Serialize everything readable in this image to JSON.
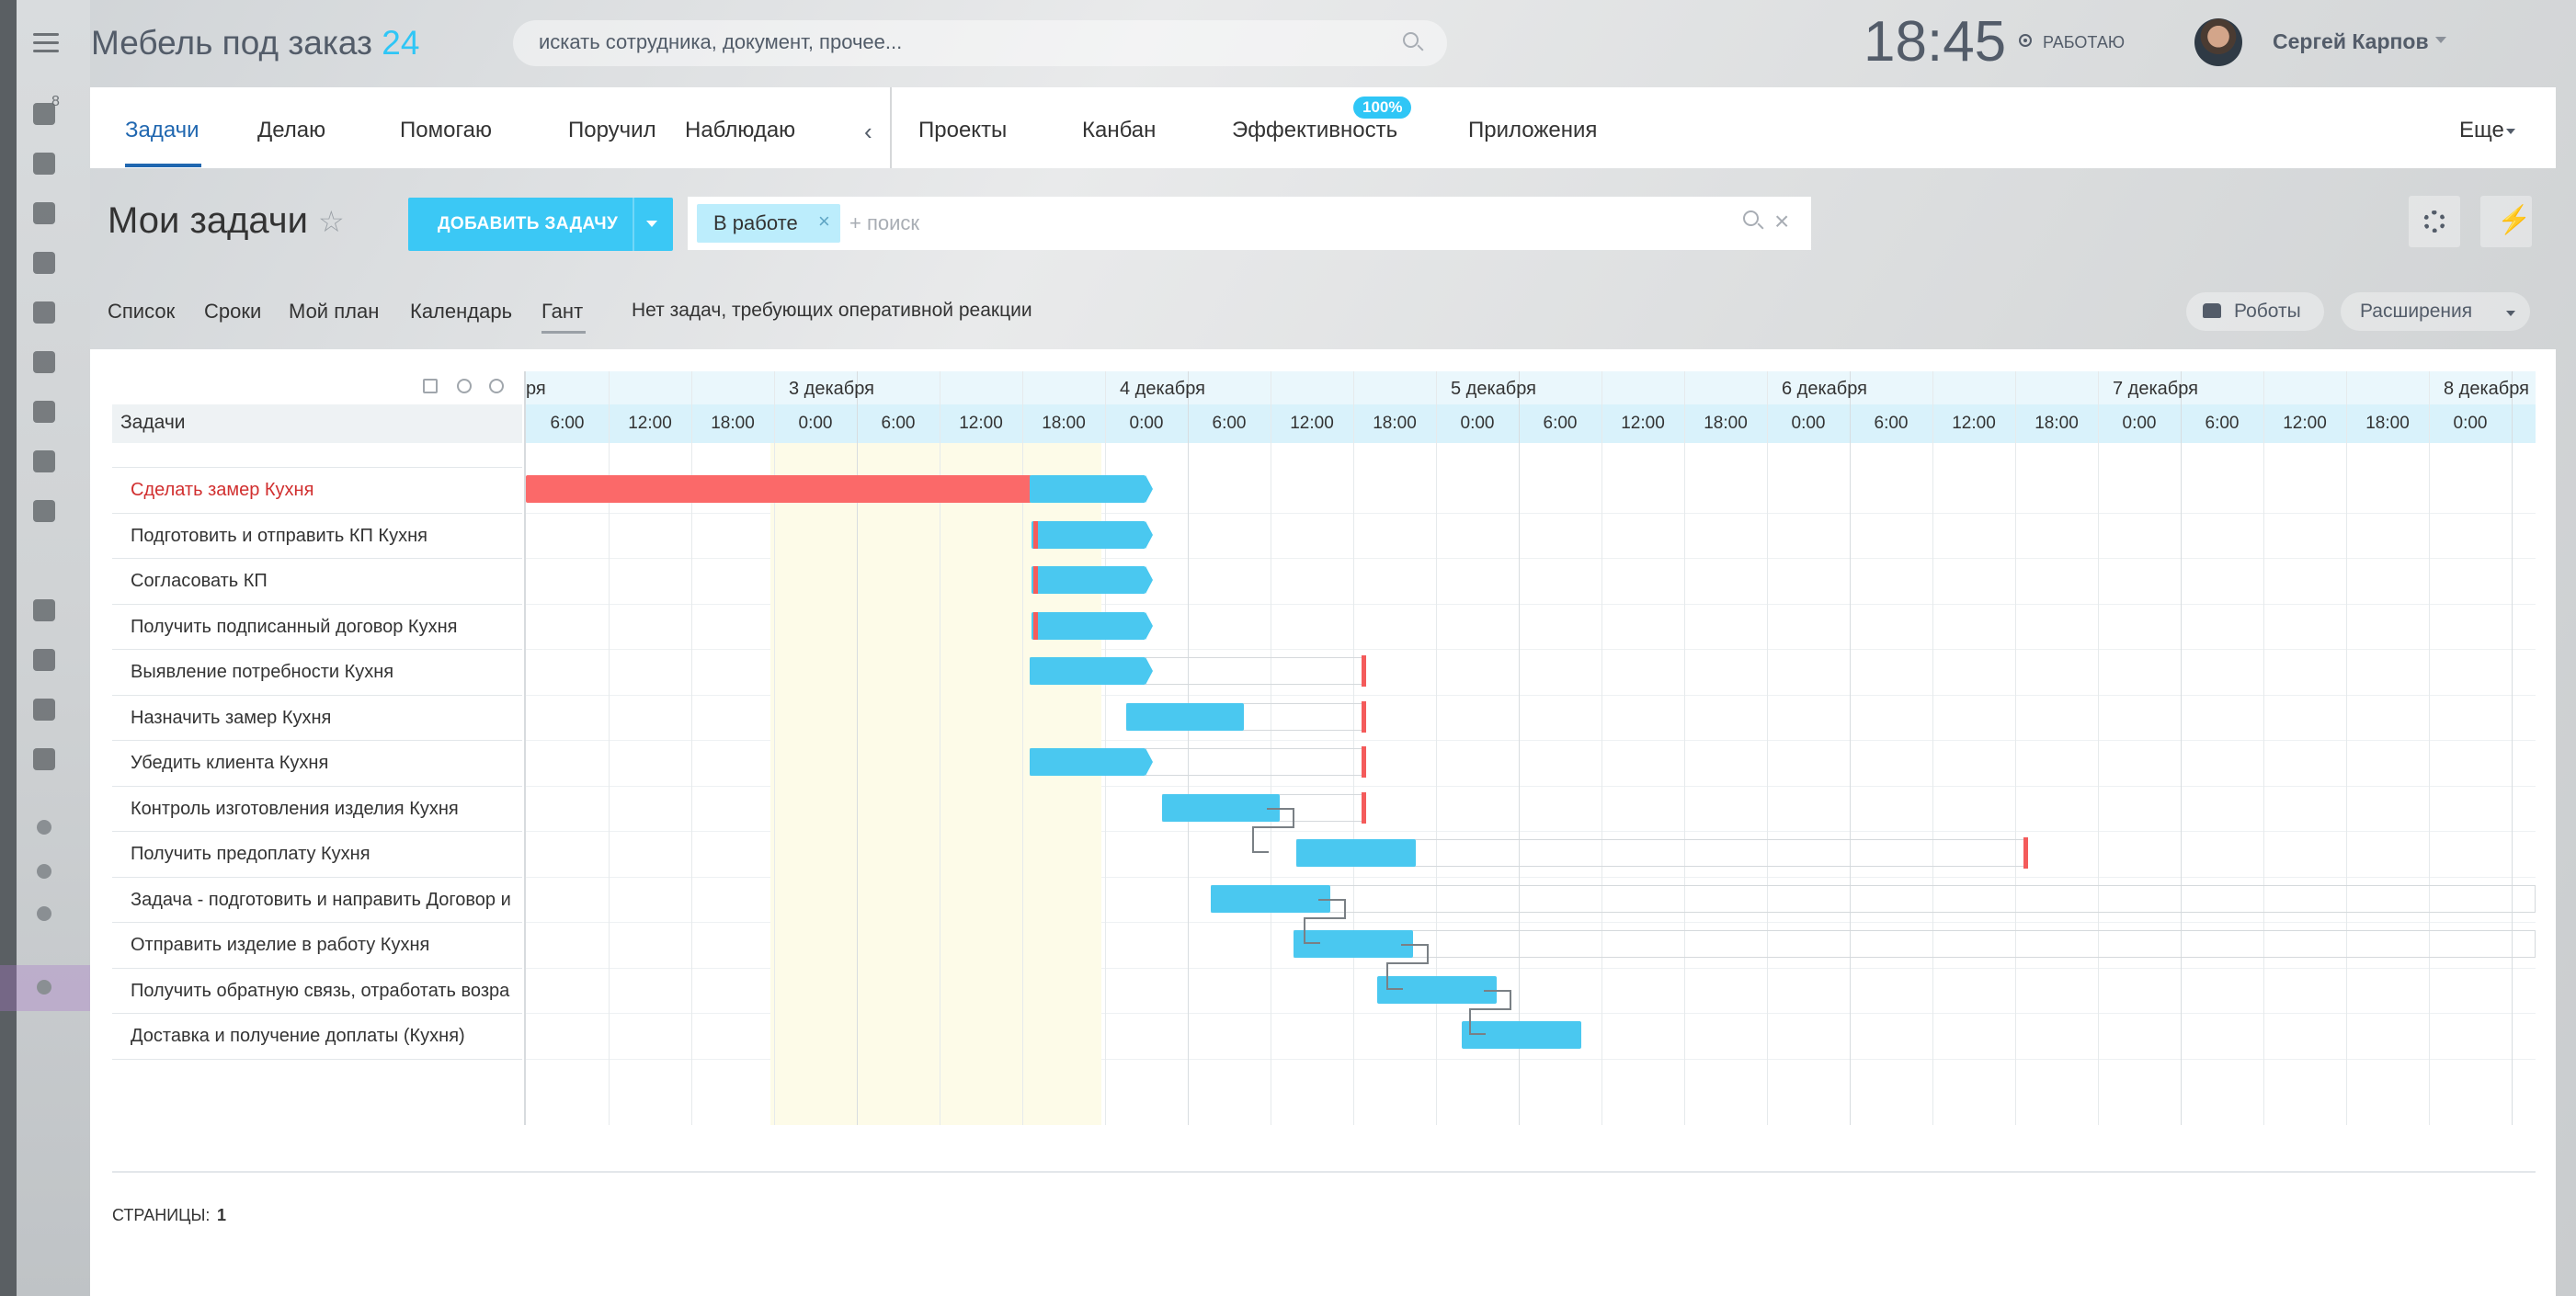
{
  "header": {
    "logo_text": "Мебель под заказ",
    "logo_num": "24",
    "search_placeholder": "искать сотрудника, документ, прочее...",
    "time": "18:45",
    "work_status": "РАБОТАЮ",
    "user_name": "Сергей Карпов",
    "side_badge": "8"
  },
  "tabs": {
    "items": [
      "Задачи",
      "Делаю",
      "Помогаю",
      "Поручил",
      "Наблюдаю",
      "Проекты",
      "Канбан",
      "Эффективность",
      "Приложения"
    ],
    "efficiency_badge": "100%",
    "more": "Еще",
    "arrow": "‹"
  },
  "page": {
    "title": "Мои задачи",
    "add_button": "ДОБАВИТЬ ЗАДАЧУ",
    "filter_chip": "В работе",
    "filter_search": "+ поиск"
  },
  "views": {
    "items": [
      "Список",
      "Сроки",
      "Мой план",
      "Календарь",
      "Гант"
    ],
    "note": "Нет задач, требующих оперативной реакции",
    "robots": "Роботы",
    "extensions": "Расширения"
  },
  "gantt": {
    "tasks_header": "Задачи",
    "days": [
      "ря",
      "3 декабря",
      "4 декабря",
      "5 декабря",
      "6 декабря",
      "7 декабря",
      "8 декабря"
    ],
    "hours": [
      "6:00",
      "12:00",
      "18:00",
      "0:00",
      "6:00",
      "12:00",
      "18:00",
      "0:00",
      "6:00",
      "12:00",
      "18:00",
      "0:00",
      "6:00",
      "12:00",
      "18:00",
      "0:00",
      "6:00",
      "12:00",
      "18:00",
      "0:00",
      "6:00",
      "12:00",
      "18:00",
      "0:00"
    ],
    "tasks": [
      {
        "name": "Сделать замер Кухня",
        "overdue": true
      },
      {
        "name": "Подготовить и отправить КП Кухня",
        "overdue": false
      },
      {
        "name": "Согласовать КП",
        "overdue": false
      },
      {
        "name": "Получить подписанный договор Кухня",
        "overdue": false
      },
      {
        "name": "Выявление потребности Кухня",
        "overdue": false
      },
      {
        "name": "Назначить замер Кухня",
        "overdue": false
      },
      {
        "name": "Убедить клиента Кухня",
        "overdue": false
      },
      {
        "name": "Контроль изготовления изделия Кухня",
        "overdue": false
      },
      {
        "name": "Получить предоплату Кухня",
        "overdue": false
      },
      {
        "name": "Задача - подготовить и направить Договор и",
        "overdue": false
      },
      {
        "name": "Отправить изделие в работу Кухня",
        "overdue": false
      },
      {
        "name": "Получить обратную связь, отработать возра",
        "overdue": false
      },
      {
        "name": "Доставка и получение доплаты (Кухня)",
        "overdue": false
      }
    ],
    "pages_label": "СТРАНИЦЫ:",
    "pages_num": "1"
  },
  "colors": {
    "accent": "#2fc6f6",
    "bar": "#4ac8f0",
    "overdue_bar": "#fb6969",
    "active_tab": "#2067b0"
  },
  "icons": [
    "burger-icon",
    "search-icon",
    "gear-icon",
    "flash-icon",
    "robot-icon",
    "print-icon",
    "zoom-in-icon",
    "zoom-out-icon",
    "star-icon",
    "close-icon"
  ]
}
